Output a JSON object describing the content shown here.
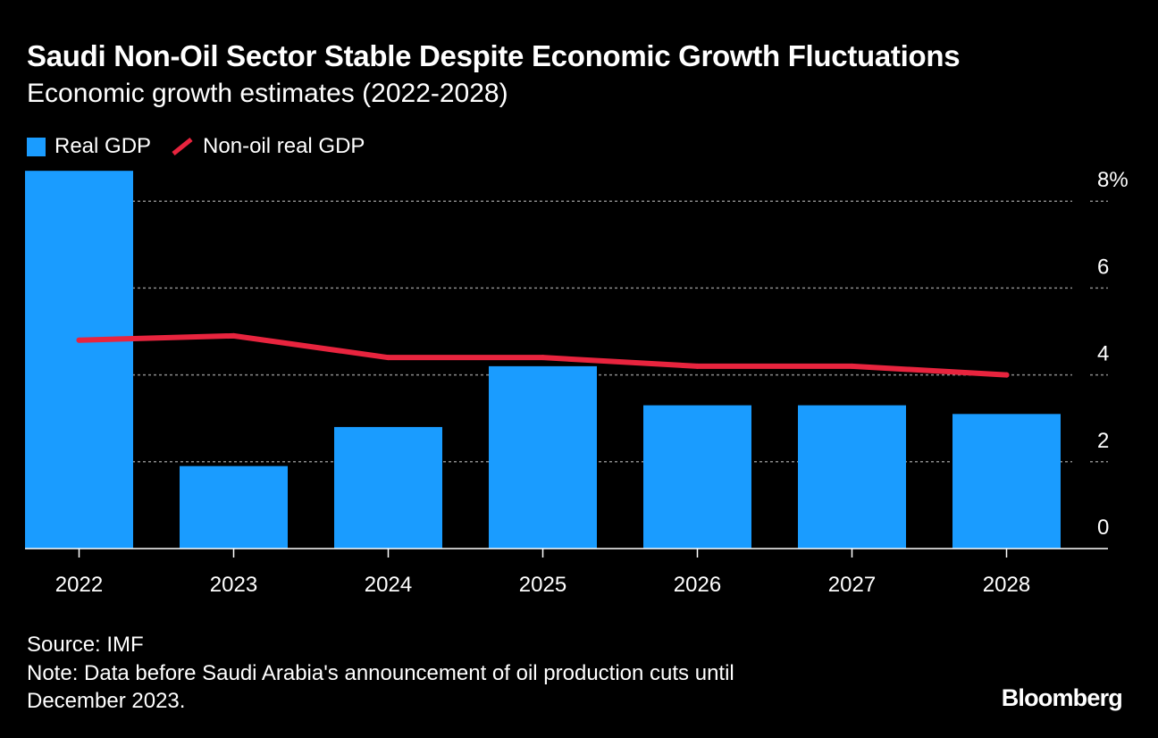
{
  "header": {
    "title": "Saudi Non-Oil Sector Stable Despite Economic Growth Fluctuations",
    "subtitle": "Economic growth estimates (2022-2028)"
  },
  "legend": {
    "bar_label": "Real GDP",
    "line_label": "Non-oil real GDP"
  },
  "colors": {
    "bar": "#1a9cff",
    "line": "#e8243e",
    "grid": "#8a8a8a",
    "axis": "#ffffff",
    "background": "#000000"
  },
  "footer": {
    "source": "Source: IMF",
    "note_line1": "Note: Data before Saudi Arabia's announcement of oil production cuts until",
    "note_line2": "December 2023.",
    "logo": "Bloomberg"
  },
  "chart_data": {
    "type": "bar",
    "categories": [
      "2022",
      "2023",
      "2024",
      "2025",
      "2026",
      "2027",
      "2028"
    ],
    "series": [
      {
        "name": "Real GDP",
        "type": "bar",
        "values": [
          8.7,
          1.9,
          2.8,
          4.2,
          3.3,
          3.3,
          3.1
        ]
      },
      {
        "name": "Non-oil real GDP",
        "type": "line",
        "values": [
          4.8,
          4.9,
          4.4,
          4.4,
          4.2,
          4.2,
          4.0
        ]
      }
    ],
    "y_ticks": [
      0,
      2,
      4,
      6,
      8
    ],
    "y_tick_labels": [
      "0",
      "2",
      "4",
      "6",
      "8%"
    ],
    "ylim": [
      0,
      8.7
    ],
    "xlabel": "",
    "ylabel": "",
    "grid": true,
    "y_axis_side": "right",
    "title": "Saudi Non-Oil Sector Stable Despite Economic Growth Fluctuations"
  }
}
